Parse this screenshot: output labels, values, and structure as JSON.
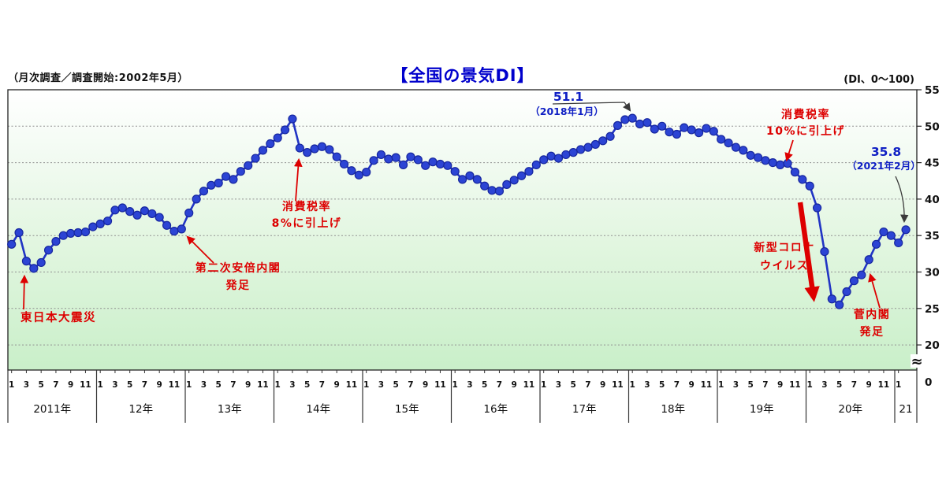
{
  "header": {
    "survey_note": "（月次調査／調査開始:2002年5月）",
    "title": "【全国の景気DI】",
    "di_range_note": "(DI、0～100)"
  },
  "y_axis": {
    "tick_values": [
      55,
      50,
      45,
      40,
      35,
      30,
      25,
      20
    ],
    "break_symbol": "≈",
    "zero_label": "0"
  },
  "x_axis": {
    "month_tick_values": [
      1,
      3,
      5,
      7,
      9,
      11
    ]
  },
  "chart_data": {
    "type": "line",
    "title": "【全国の景気DI】",
    "ylabel": "DI",
    "ylim": [
      20,
      55
    ],
    "grid": "horizontal-dotted",
    "legend": "none",
    "series_name": "全国の景気DI",
    "years": [
      {
        "label": "2011年",
        "values": [
          33.8,
          35.4,
          31.5,
          30.5,
          31.3,
          33.0,
          34.2,
          35.0,
          35.3,
          35.4,
          35.5,
          36.2
        ]
      },
      {
        "label": "12年",
        "values": [
          36.6,
          37.0,
          38.5,
          38.8,
          38.3,
          37.8,
          38.4,
          38.0,
          37.5,
          36.4,
          35.6,
          35.9
        ]
      },
      {
        "label": "13年",
        "values": [
          38.1,
          40.0,
          41.1,
          41.9,
          42.2,
          43.1,
          42.7,
          43.8,
          44.6,
          45.6,
          46.7,
          47.6
        ]
      },
      {
        "label": "14年",
        "values": [
          48.4,
          49.5,
          51.0,
          47.0,
          46.4,
          46.9,
          47.2,
          46.8,
          45.8,
          44.8,
          43.9,
          43.3
        ]
      },
      {
        "label": "15年",
        "values": [
          43.7,
          45.3,
          46.1,
          45.5,
          45.7,
          44.7,
          45.8,
          45.4,
          44.6,
          45.1,
          44.8,
          44.6
        ]
      },
      {
        "label": "16年",
        "values": [
          43.8,
          42.7,
          43.2,
          42.7,
          41.8,
          41.2,
          41.1,
          42.0,
          42.6,
          43.2,
          43.8,
          44.7
        ]
      },
      {
        "label": "17年",
        "values": [
          45.4,
          45.9,
          45.6,
          46.1,
          46.4,
          46.8,
          47.1,
          47.5,
          48.0,
          48.6,
          50.1,
          50.9
        ]
      },
      {
        "label": "18年",
        "values": [
          51.1,
          50.3,
          50.5,
          49.6,
          50.0,
          49.2,
          48.9,
          49.8,
          49.5,
          49.1,
          49.7,
          49.3
        ]
      },
      {
        "label": "19年",
        "values": [
          48.2,
          47.7,
          47.1,
          46.7,
          46.0,
          45.7,
          45.3,
          45.0,
          44.7,
          44.9,
          43.7,
          42.7
        ]
      },
      {
        "label": "20年",
        "values": [
          41.8,
          38.8,
          32.8,
          26.3,
          25.5,
          27.3,
          28.8,
          29.6,
          31.7,
          33.8,
          35.5,
          35.0
        ]
      },
      {
        "label": "21",
        "values": [
          34.0,
          35.8
        ]
      }
    ],
    "annotations": [
      {
        "id": "earthquake",
        "color": "red",
        "lines": [
          "東日本大震災"
        ]
      },
      {
        "id": "abe",
        "color": "red",
        "lines": [
          "第二次安倍内閣",
          "発足"
        ]
      },
      {
        "id": "tax8",
        "color": "red",
        "lines": [
          "消費税率",
          "8%に引上げ"
        ]
      },
      {
        "id": "peak51",
        "color": "blue",
        "lines": [
          "51.1",
          "（2018年1月）"
        ]
      },
      {
        "id": "tax10",
        "color": "red",
        "lines": [
          "消費税率",
          "10%に引上げ"
        ]
      },
      {
        "id": "covid",
        "color": "red",
        "lines": [
          "新型コロナ",
          "ウイルス"
        ]
      },
      {
        "id": "suga",
        "color": "red",
        "lines": [
          "菅内閣",
          "発足"
        ]
      },
      {
        "id": "last358",
        "color": "blue",
        "lines": [
          "35.8",
          "（2021年2月）"
        ]
      }
    ]
  },
  "colors": {
    "line": "#2134c4",
    "dot_fill": "#2c44d4",
    "dot_stroke": "#17279f",
    "red": "#dd0000",
    "blue": "#0f1fc4",
    "title_blue": "#0000cc",
    "grid": "#909090",
    "axis": "#222222",
    "plot_bg_top": "#ffffff",
    "plot_bg_bottom": "#c9efc9",
    "leader_gray": "#3a3a3a"
  }
}
